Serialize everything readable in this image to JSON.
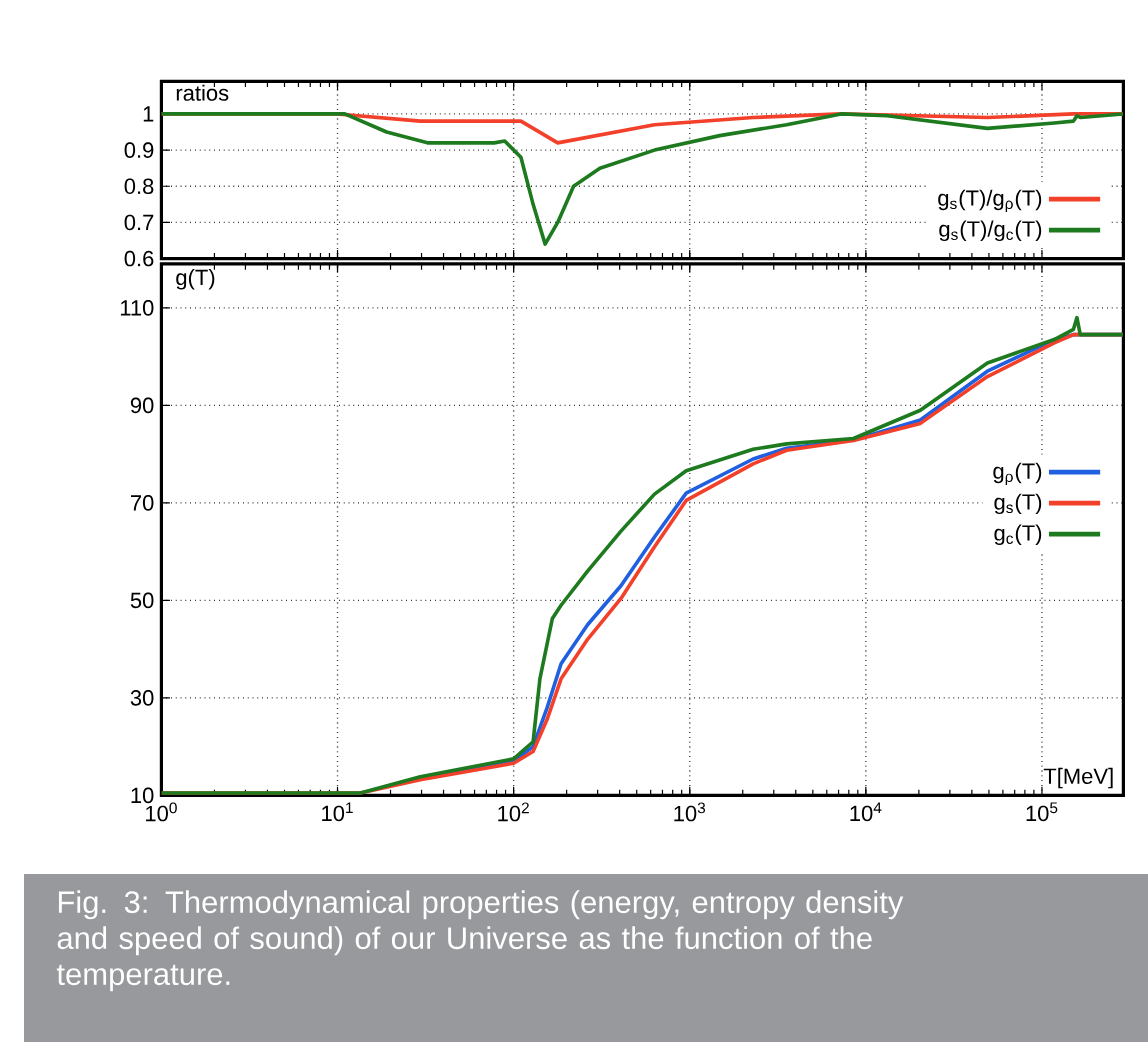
{
  "chart_data": [
    {
      "type": "line",
      "ylabel": "ratios",
      "log": "x",
      "grid": true,
      "legend": "bottom right",
      "tick_labels": "y",
      "xlim": [
        1,
        290000
      ],
      "ylim": [
        0.6,
        1.09
      ],
      "xticks": [
        {
          "value": 1,
          "label": null
        },
        {
          "value": 10,
          "label": null
        },
        {
          "value": 100,
          "label": null
        },
        {
          "value": 1000,
          "label": null
        },
        {
          "value": 10000,
          "label": null
        },
        {
          "value": 100000,
          "label": null
        }
      ],
      "yticks": [
        0.6,
        0.7,
        0.8,
        0.9,
        1
      ],
      "series": [
        {
          "name": "g$_{s}$(T)/g$_{ρ}$(T)",
          "color": "#f2402a",
          "x": [
            1,
            10,
            29.5,
            110,
            178,
            631,
            2290,
            7240,
            49000,
            151000,
            288000
          ],
          "values": [
            1,
            1,
            0.98,
            0.98,
            0.92,
            0.97,
            0.99,
            1.0,
            0.99,
            1.0,
            1.0
          ]
        },
        {
          "name": "g$_{s}$(T)/g$_{c}$(T)",
          "color": "#1e7a1e",
          "x": [
            1,
            11,
            19,
            32.4,
            77.6,
            89,
            110,
            129,
            151,
            178,
            219,
            309,
            631,
            1480,
            3550,
            7240,
            13200,
            49000,
            117500,
            151000,
            158000,
            166000,
            288000
          ],
          "values": [
            1,
            1,
            0.95,
            0.92,
            0.92,
            0.925,
            0.88,
            0.75,
            0.64,
            0.7,
            0.8,
            0.85,
            0.9,
            0.94,
            0.97,
            1.0,
            0.995,
            0.96,
            0.975,
            0.98,
            0.995,
            0.99,
            1.0
          ]
        }
      ]
    },
    {
      "type": "line",
      "ylabel": "g(T)",
      "xlabel": "T[MeV]",
      "log": "x",
      "grid": true,
      "legend": "right",
      "xlim": [
        1,
        290000
      ],
      "ylim": [
        10,
        119
      ],
      "xticks": [
        {
          "value": 1,
          "label": "10$^{0}$"
        },
        {
          "value": 10,
          "label": "10$^{1}$"
        },
        {
          "value": 100,
          "label": "10$^{2}$"
        },
        {
          "value": 1000,
          "label": "10$^{3}$"
        },
        {
          "value": 10000,
          "label": "10$^{4}$"
        },
        {
          "value": 100000,
          "label": "10$^{5}$"
        }
      ],
      "yticks": [
        10,
        30,
        50,
        70,
        90,
        110
      ],
      "series": [
        {
          "name": "g$_{ρ}$(T)",
          "color": "#1f5fe0",
          "x": [
            29.5,
            100,
            129,
            155,
            186,
            263,
            407,
            631,
            955,
            2290,
            3550,
            8510,
            20400,
            49000,
            117500,
            151000,
            288000
          ],
          "values": [
            13.5,
            17,
            20,
            28,
            37,
            45,
            53,
            63,
            72,
            79,
            81.2,
            82.9,
            87,
            97,
            103.5,
            104.5,
            104.5
          ]
        },
        {
          "name": "g$_{s}$(T)",
          "color": "#f2402a",
          "x": [
            1,
            13.5,
            29.5,
            100,
            129,
            155,
            186,
            263,
            407,
            631,
            955,
            2290,
            3550,
            8510,
            20400,
            49000,
            117500,
            151000,
            288000
          ],
          "values": [
            10.5,
            10.5,
            13.2,
            16.6,
            19,
            25.6,
            33.9,
            42,
            50.4,
            61,
            70.5,
            78,
            80.8,
            82.8,
            86.3,
            95.9,
            102.8,
            104.5,
            104.5
          ]
        },
        {
          "name": "g$_{c}$(T)",
          "color": "#1e7a1e",
          "x": [
            1,
            13.5,
            29.5,
            100,
            129,
            141,
            166,
            186,
            263,
            407,
            631,
            955,
            2290,
            3550,
            8510,
            20400,
            49000,
            117500,
            151000,
            158000,
            165000,
            288000
          ],
          "values": [
            10.5,
            10.5,
            13.8,
            17.5,
            21,
            33.9,
            46.3,
            49,
            56,
            64.2,
            71.8,
            76.6,
            81,
            82.1,
            83.2,
            89,
            98.7,
            103.5,
            105.6,
            108,
            104.5,
            104.5
          ]
        }
      ],
      "annotations": [
        "Fig. 3: Thermodynamical properties (energy, entropy density and speed of sound) of our Universe as the function of the temperature."
      ]
    }
  ]
}
